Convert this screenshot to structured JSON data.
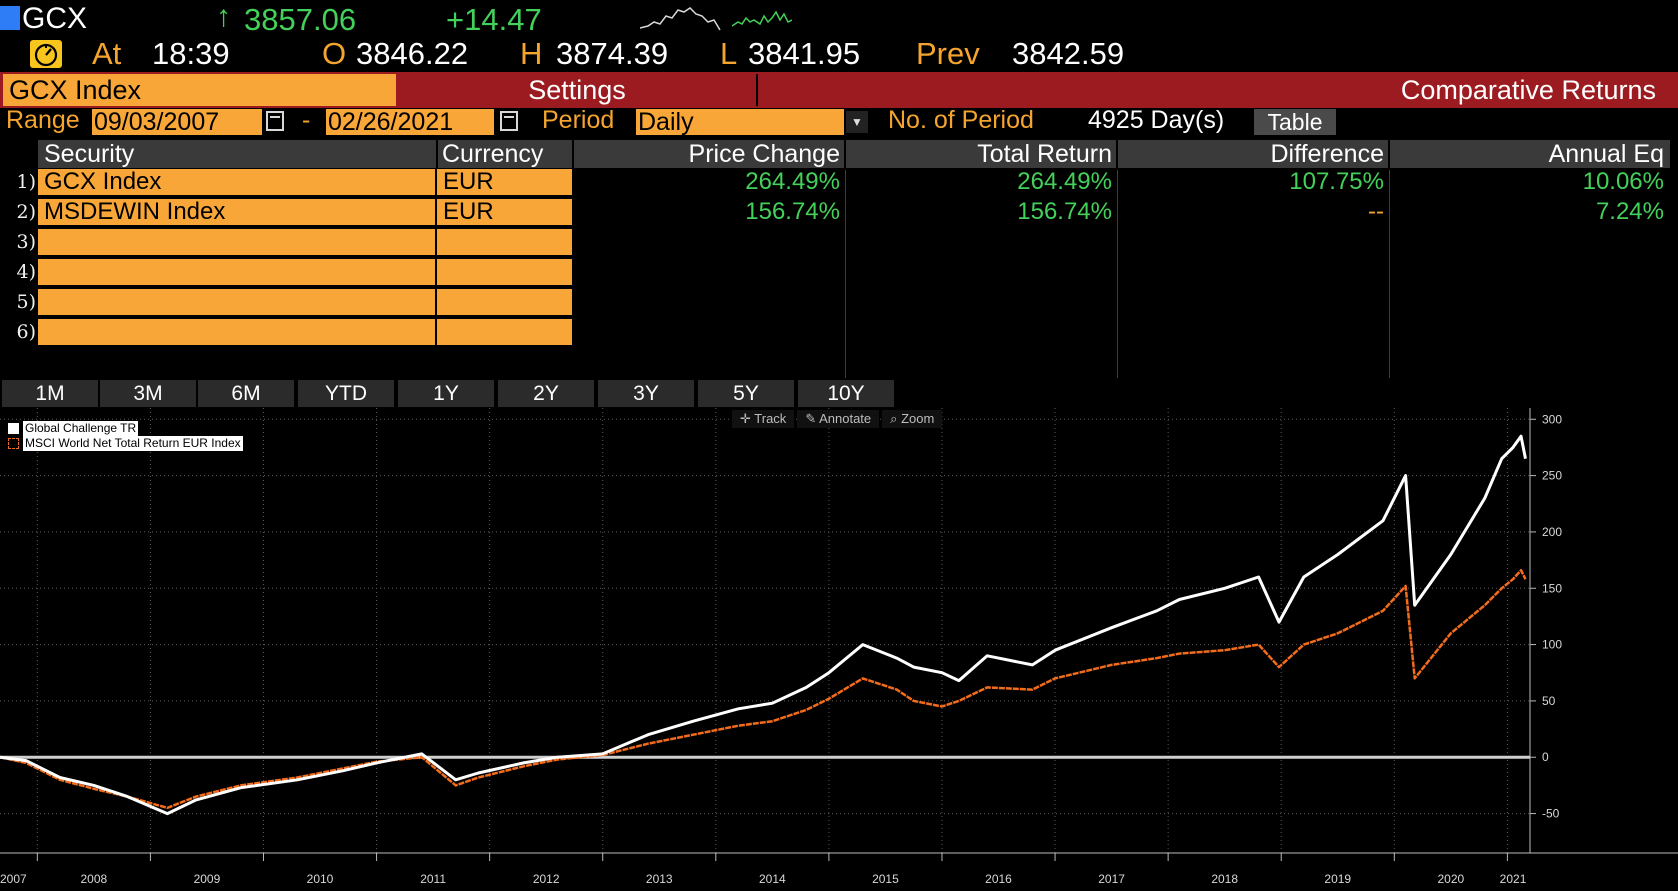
{
  "header": {
    "ticker": "GCX",
    "last_arrow": "↑",
    "last_price": "3857.06",
    "net_change": "+14.47",
    "at_label": "At",
    "time": "18:39",
    "open_label": "O",
    "open": "3846.22",
    "high_label": "H",
    "high": "3874.39",
    "low_label": "L",
    "low": "3841.95",
    "prev_label": "Prev",
    "prev": "3842.59",
    "clock_icon": "gauge-icon",
    "up_color": "#44d15a"
  },
  "tabs": {
    "index_label": "GCX Index",
    "settings_label": "Settings",
    "title": "Comparative Returns"
  },
  "range": {
    "label": "Range",
    "start": "09/03/2007",
    "dash": "-",
    "end": "02/26/2021",
    "period_label": "Period",
    "period_value": "Daily",
    "count_label": "No. of Period",
    "count_value": "4925 Day(s)",
    "table_button": "Table"
  },
  "securities": {
    "columns": [
      "Security",
      "Currency",
      "Price Change",
      "Total Return",
      "Difference",
      "Annual Eq"
    ],
    "rows": [
      {
        "num": "1)",
        "security": "GCX Index",
        "currency": "EUR",
        "price_change": "264.49%",
        "total_return": "264.49%",
        "difference": "107.75%",
        "annual_eq": "10.06%"
      },
      {
        "num": "2)",
        "security": "MSDEWIN Index",
        "currency": "EUR",
        "price_change": "156.74%",
        "total_return": "156.74%",
        "difference": "--",
        "annual_eq": "7.24%"
      },
      {
        "num": "3)",
        "security": "",
        "currency": "",
        "price_change": "",
        "total_return": "",
        "difference": "",
        "annual_eq": ""
      },
      {
        "num": "4)",
        "security": "",
        "currency": "",
        "price_change": "",
        "total_return": "",
        "difference": "",
        "annual_eq": ""
      },
      {
        "num": "5)",
        "security": "",
        "currency": "",
        "price_change": "",
        "total_return": "",
        "difference": "",
        "annual_eq": ""
      },
      {
        "num": "6)",
        "security": "",
        "currency": "",
        "price_change": "",
        "total_return": "",
        "difference": "",
        "annual_eq": ""
      }
    ]
  },
  "time_buttons": [
    "1M",
    "3M",
    "6M",
    "YTD",
    "1Y",
    "2Y",
    "3Y",
    "5Y",
    "10Y"
  ],
  "chart_tools": {
    "track": "Track",
    "annotate": "Annotate",
    "zoom": "Zoom"
  },
  "chart_data": {
    "type": "line",
    "legend_position": "top-left",
    "grid": true,
    "ylim": [
      -85,
      310
    ],
    "xlim": [
      2007.67,
      2021.2
    ],
    "y_ticks": [
      -50,
      0,
      50,
      100,
      150,
      200,
      250,
      300
    ],
    "y_tick_labels": [
      "-50",
      "0",
      "50",
      "100",
      "150",
      "200",
      "250",
      "300"
    ],
    "x_tick_labels": [
      "2007",
      "2008",
      "2009",
      "2010",
      "2011",
      "2012",
      "2013",
      "2014",
      "2015",
      "2016",
      "2017",
      "2018",
      "2019",
      "2020",
      "2021"
    ],
    "x_label_positions": [
      2007.67,
      2008.5,
      2009.5,
      2010.5,
      2011.5,
      2012.5,
      2013.5,
      2014.5,
      2015.5,
      2016.5,
      2017.5,
      2018.5,
      2019.5,
      2020.5,
      2021.05
    ],
    "series": [
      {
        "name": "Global Challenge  TR",
        "color": "#ffffff",
        "x": [
          2007.67,
          2007.9,
          2008.2,
          2008.5,
          2008.8,
          2009.15,
          2009.4,
          2009.8,
          2010.3,
          2010.7,
          2011.0,
          2011.4,
          2011.7,
          2011.9,
          2012.3,
          2012.6,
          2013.0,
          2013.4,
          2013.8,
          2014.2,
          2014.5,
          2014.8,
          2015.0,
          2015.3,
          2015.6,
          2015.75,
          2016.0,
          2016.15,
          2016.4,
          2016.8,
          2017.0,
          2017.5,
          2017.9,
          2018.1,
          2018.5,
          2018.8,
          2018.98,
          2019.2,
          2019.5,
          2019.9,
          2020.1,
          2020.18,
          2020.5,
          2020.8,
          2020.95,
          2021.05,
          2021.12,
          2021.16
        ],
        "values": [
          0,
          -3,
          -18,
          -25,
          -35,
          -50,
          -38,
          -27,
          -20,
          -12,
          -5,
          3,
          -20,
          -14,
          -5,
          0,
          3,
          20,
          32,
          43,
          48,
          62,
          75,
          100,
          88,
          80,
          75,
          68,
          90,
          82,
          95,
          115,
          130,
          140,
          150,
          160,
          120,
          160,
          180,
          210,
          250,
          135,
          180,
          230,
          265,
          275,
          285,
          265
        ]
      },
      {
        "name": "MSCI World Net Total Return EUR Index",
        "color": "#f26c1c",
        "x": [
          2007.67,
          2007.9,
          2008.2,
          2008.5,
          2008.8,
          2009.15,
          2009.4,
          2009.8,
          2010.3,
          2010.7,
          2011.0,
          2011.4,
          2011.7,
          2011.9,
          2012.3,
          2012.6,
          2013.0,
          2013.4,
          2013.8,
          2014.2,
          2014.5,
          2014.8,
          2015.0,
          2015.3,
          2015.6,
          2015.75,
          2016.0,
          2016.15,
          2016.4,
          2016.8,
          2017.0,
          2017.5,
          2017.9,
          2018.1,
          2018.5,
          2018.8,
          2018.98,
          2019.2,
          2019.5,
          2019.9,
          2020.1,
          2020.18,
          2020.5,
          2020.8,
          2020.95,
          2021.05,
          2021.12,
          2021.16
        ],
        "values": [
          0,
          -5,
          -20,
          -28,
          -35,
          -45,
          -35,
          -25,
          -18,
          -10,
          -4,
          0,
          -25,
          -18,
          -8,
          -2,
          2,
          12,
          20,
          28,
          32,
          42,
          52,
          70,
          60,
          50,
          45,
          50,
          62,
          60,
          70,
          82,
          88,
          92,
          95,
          100,
          80,
          100,
          110,
          130,
          152,
          70,
          110,
          135,
          150,
          158,
          166,
          158
        ]
      }
    ]
  }
}
